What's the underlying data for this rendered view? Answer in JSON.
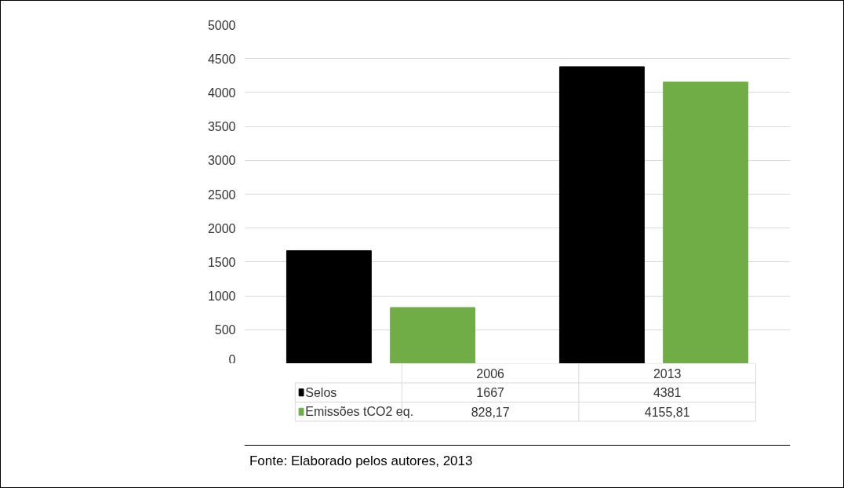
{
  "chart_data": {
    "type": "bar",
    "categories": [
      "2006",
      "2013"
    ],
    "series": [
      {
        "name": "Selos",
        "color": "#000000",
        "values": [
          1667,
          4381
        ],
        "value_labels": [
          "1667",
          "4381"
        ]
      },
      {
        "name": "Emissões tCO2 eq.",
        "color": "#70ad47",
        "values": [
          828.17,
          4155.81
        ],
        "value_labels": [
          "828,17",
          "4155,81"
        ]
      }
    ],
    "ylim": [
      0,
      5000
    ],
    "yticks": [
      0,
      500,
      1000,
      1500,
      2000,
      2500,
      3000,
      3500,
      4000,
      4500,
      5000
    ],
    "grid": "y",
    "legend": "bottom",
    "annotations": [
      "Fonte: Elaborado pelos autores, 2013"
    ]
  }
}
